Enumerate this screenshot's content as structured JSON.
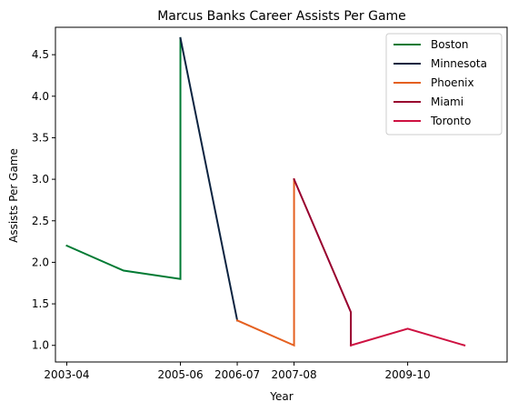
{
  "chart_data": {
    "type": "line",
    "title": "Marcus Banks Career Assists Per Game",
    "xlabel": "Year",
    "ylabel": "Assists Per Game",
    "xlim": [
      -0.2,
      7.75
    ],
    "ylim": [
      0.8,
      4.83
    ],
    "x_ticks": [
      {
        "label": "2003-04",
        "pos": 0
      },
      {
        "label": "2005-06",
        "pos": 2
      },
      {
        "label": "2006-07",
        "pos": 3
      },
      {
        "label": "2007-08",
        "pos": 4
      },
      {
        "label": "2009-10",
        "pos": 6
      }
    ],
    "y_ticks": [
      1.0,
      1.5,
      2.0,
      2.5,
      3.0,
      3.5,
      4.0,
      4.5
    ],
    "legend_position": "top-right",
    "series": [
      {
        "name": "Boston",
        "color": "#007A33",
        "points": [
          [
            0,
            2.2
          ],
          [
            1,
            1.9
          ],
          [
            2,
            1.8
          ],
          [
            2,
            4.7
          ]
        ]
      },
      {
        "name": "Minnesota",
        "color": "#0C2340",
        "points": [
          [
            2,
            4.7
          ],
          [
            3,
            1.3
          ]
        ]
      },
      {
        "name": "Phoenix",
        "color": "#E56020",
        "points": [
          [
            3,
            1.3
          ],
          [
            4,
            1.0
          ],
          [
            4,
            3.0
          ]
        ]
      },
      {
        "name": "Miami",
        "color": "#98002E",
        "points": [
          [
            4,
            3.0
          ],
          [
            5,
            1.4
          ],
          [
            5,
            1.0
          ]
        ]
      },
      {
        "name": "Toronto",
        "color": "#CE1141",
        "points": [
          [
            5,
            1.0
          ],
          [
            6,
            1.2
          ],
          [
            7,
            1.0
          ]
        ]
      }
    ]
  }
}
